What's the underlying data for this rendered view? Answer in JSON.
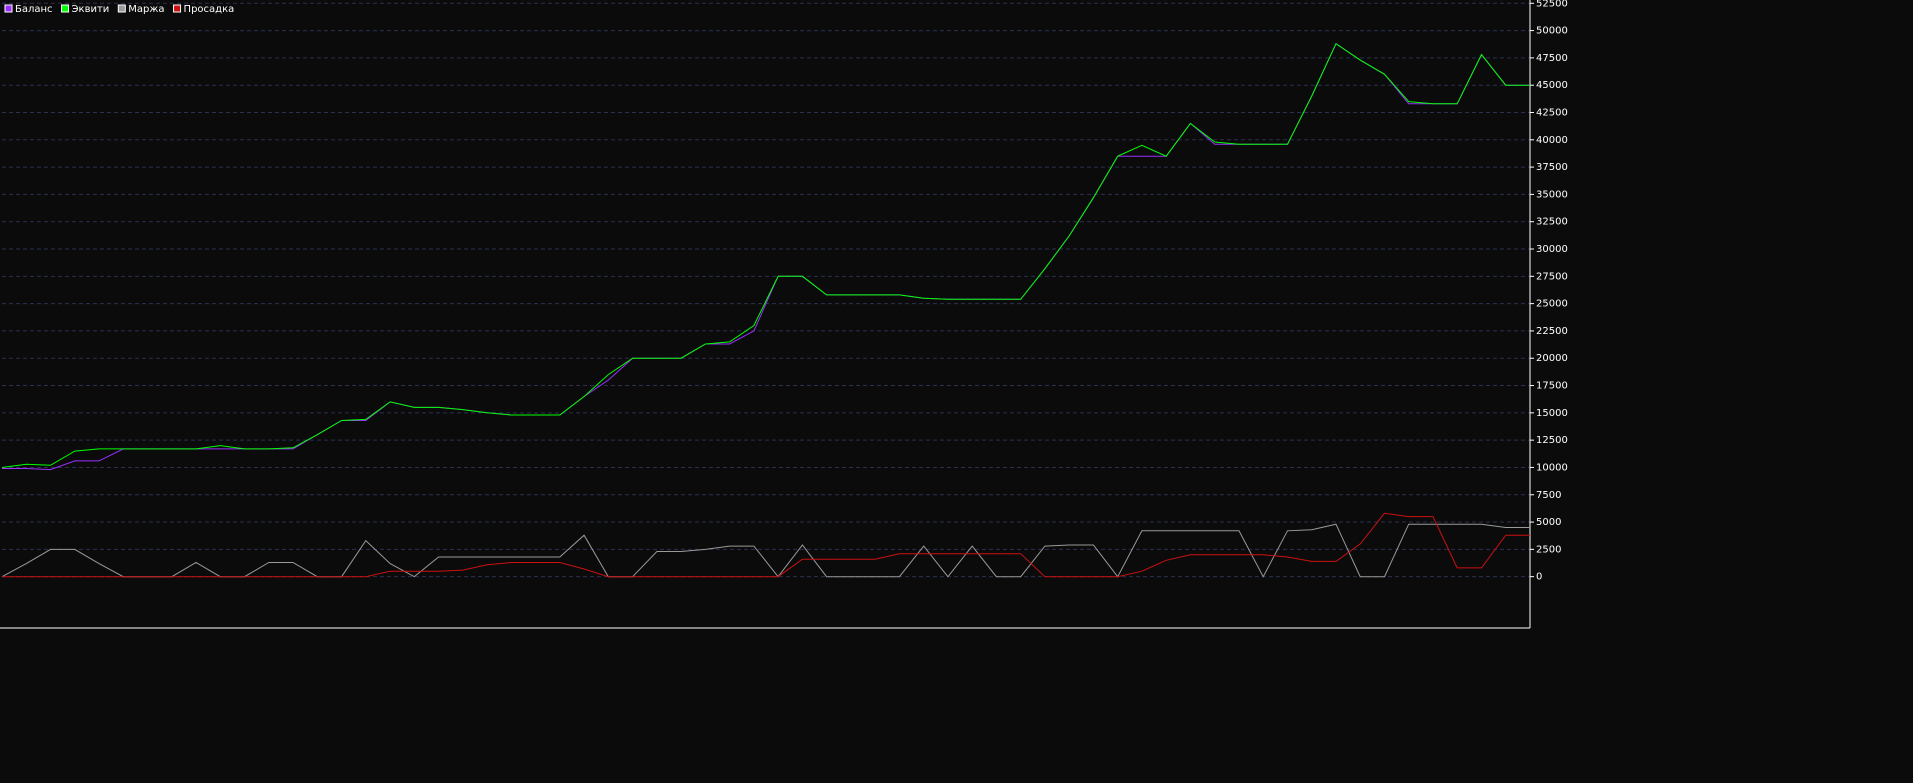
{
  "chart_data": {
    "type": "line",
    "ylim": [
      -4700,
      52800
    ],
    "yticks": [
      0,
      2500,
      5000,
      7500,
      10000,
      12500,
      15000,
      17500,
      20000,
      22500,
      25000,
      27500,
      30000,
      32500,
      35000,
      37500,
      40000,
      42500,
      45000,
      47500,
      50000,
      52500
    ],
    "grid": true,
    "legend": "upper left",
    "series": [
      {
        "name": "Баланс",
        "color": "#9b30ff",
        "values": [
          9900,
          9900,
          9800,
          10600,
          10600,
          11700,
          11700,
          11700,
          11700,
          11700,
          11700,
          11700,
          11700,
          13000,
          14300,
          14300,
          16000,
          15500,
          15500,
          15300,
          15000,
          14800,
          14800,
          14800,
          16500,
          18000,
          20000,
          20000,
          20000,
          21300,
          21300,
          22500,
          27500,
          27500,
          25800,
          25800,
          25800,
          25800,
          25500,
          25400,
          25400,
          25400,
          25400,
          28200,
          31200,
          34700,
          38500,
          38500,
          38500,
          41500,
          39600,
          39600,
          39600,
          39600,
          44000,
          48800,
          47300,
          46000,
          43300,
          43300,
          43300,
          47800,
          45000,
          45000
        ]
      },
      {
        "name": "Эквити",
        "color": "#00ff00",
        "values": [
          10000,
          10300,
          10200,
          11500,
          11700,
          11700,
          11700,
          11700,
          11700,
          12000,
          11700,
          11700,
          11800,
          13000,
          14300,
          14400,
          16000,
          15500,
          15500,
          15300,
          15000,
          14800,
          14800,
          14800,
          16500,
          18500,
          20000,
          20000,
          20000,
          21300,
          21500,
          23000,
          27500,
          27500,
          25800,
          25800,
          25800,
          25800,
          25500,
          25400,
          25400,
          25400,
          25400,
          28200,
          31200,
          34700,
          38500,
          39500,
          38500,
          41500,
          39800,
          39600,
          39600,
          39600,
          44000,
          48800,
          47300,
          46000,
          43500,
          43300,
          43300,
          47800,
          45000,
          45000
        ]
      },
      {
        "name": "Маржа",
        "color": "#9a9a9a",
        "values": [
          0,
          1200,
          2500,
          2500,
          1200,
          0,
          0,
          0,
          1300,
          0,
          0,
          1300,
          1300,
          0,
          0,
          3300,
          1200,
          0,
          1800,
          1800,
          1800,
          1800,
          1800,
          1800,
          3800,
          0,
          0,
          2300,
          2300,
          2500,
          2800,
          2800,
          0,
          2900,
          0,
          0,
          0,
          0,
          2800,
          0,
          2800,
          0,
          0,
          2800,
          2900,
          2900,
          0,
          4200,
          4200,
          4200,
          4200,
          4200,
          0,
          4200,
          4300,
          4800,
          0,
          0,
          4800,
          4800,
          4800,
          4800,
          4500,
          4500
        ]
      },
      {
        "name": "Просадка",
        "color": "#cc1111",
        "values": [
          0,
          0,
          0,
          0,
          0,
          0,
          0,
          0,
          0,
          0,
          0,
          0,
          0,
          0,
          0,
          0,
          500,
          500,
          500,
          600,
          1100,
          1300,
          1300,
          1300,
          700,
          0,
          0,
          0,
          0,
          0,
          0,
          0,
          0,
          1600,
          1600,
          1600,
          1600,
          2100,
          2100,
          2100,
          2100,
          2100,
          2100,
          0,
          0,
          0,
          0,
          500,
          1500,
          2000,
          2000,
          2000,
          2000,
          1800,
          1400,
          1400,
          3000,
          5800,
          5500,
          5500,
          800,
          800,
          3800,
          3800
        ]
      }
    ]
  }
}
